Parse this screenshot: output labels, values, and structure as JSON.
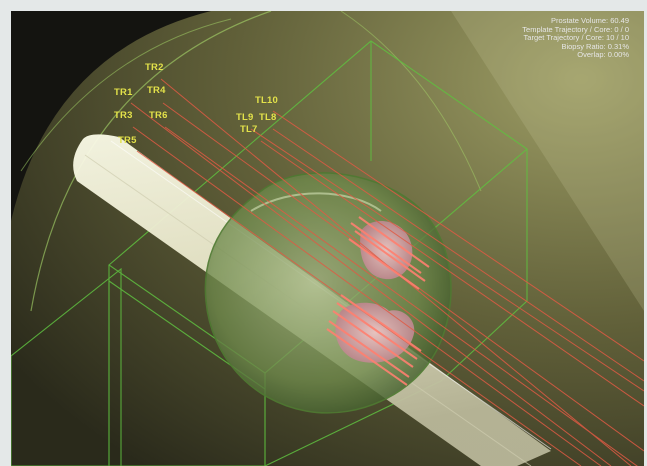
{
  "info": {
    "prostate_volume": "Prostate Volume: 60.49",
    "template_trajectory": "Template Trajectory / Core: 0 / 0",
    "target_trajectory": "Target Trajectory / Core: 10 / 10",
    "biopsy_ratio": "Biopsy Ratio: 0.31%",
    "overlap": "Overlap: 0.00%"
  },
  "trajectory_labels": [
    "TR2",
    "TR1",
    "TR4",
    "TR3",
    "TR6",
    "TR5",
    "TL10",
    "TL9",
    "TL8",
    "TL7"
  ],
  "colors": {
    "background": "#141410",
    "cone": "#8a8a4a",
    "wireframe": "#5fc040",
    "prostate": "#7c9a5a",
    "probe": "#e8e6cc",
    "trajectory": "#e05a44",
    "lesion": "#d79aa0",
    "label": "#e3e24a"
  }
}
